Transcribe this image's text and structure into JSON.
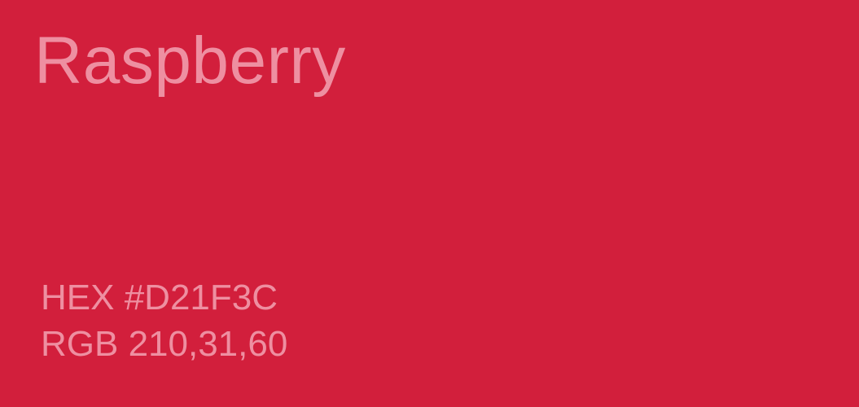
{
  "color": {
    "name": "Raspberry",
    "hex_line": "HEX #D21F3C",
    "rgb_line": "RGB 210,31,60",
    "swatch_hex": "#D21F3C",
    "text_hex": "#EE8FA1"
  }
}
